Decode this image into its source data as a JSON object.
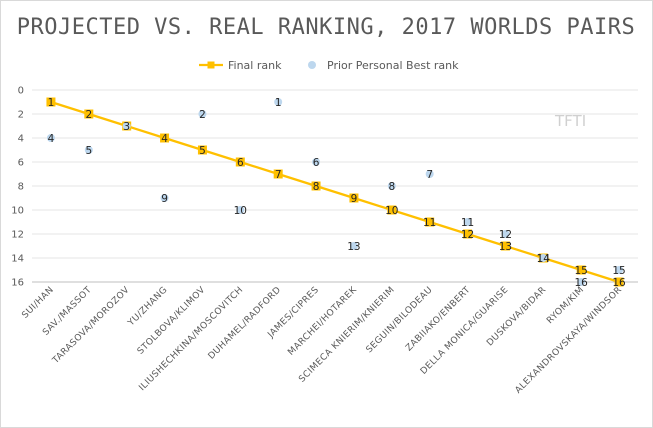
{
  "chart_data": {
    "type": "line",
    "title": "PROJECTED VS. REAL RANKING, 2017 WORLDS PAIRS",
    "watermark": "TFTI",
    "categories": [
      "SUI/HAN",
      "SAV./MASSOT",
      "TARASOVA/MOROZOV",
      "YU/ZHANG",
      "STOLBOVA/KLIMOV",
      "ILIUSHECHKINA/MOSCOVITCH",
      "DUHAMEL/RADFORD",
      "JAMES/CIPRES",
      "MARCHEI/HOTAREK",
      "SCIMECA KNIERIM/KNIERIM",
      "SEGUIN/BILODEAU",
      "ZABIIAKO/ENBERT",
      "DELLA MONICA/GUARISE",
      "DUSKOVA/BIDAR",
      "RYOM/KIM",
      "ALEXANDROVSKAYA/WINDSOR"
    ],
    "series": [
      {
        "name": "Final rank",
        "type": "line",
        "color": "#ffc000",
        "values": [
          1,
          2,
          3,
          4,
          5,
          6,
          7,
          8,
          9,
          10,
          11,
          12,
          13,
          14,
          15,
          16
        ]
      },
      {
        "name": "Prior Personal Best rank",
        "type": "scatter",
        "color": "#bdd7ee",
        "values": [
          4,
          5,
          3,
          9,
          2,
          10,
          1,
          6,
          13,
          8,
          7,
          11,
          12,
          14,
          16,
          15
        ]
      }
    ],
    "y_axis": {
      "reversed": true,
      "ylim": [
        0,
        16
      ],
      "ticks": [
        "0",
        "2",
        "4",
        "6",
        "8",
        "10",
        "12",
        "14",
        "16"
      ]
    },
    "legend": "top-center",
    "grid": true
  }
}
